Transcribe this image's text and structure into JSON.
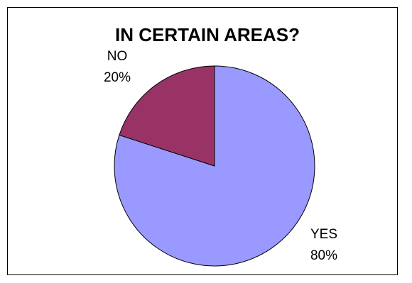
{
  "chart_data": {
    "type": "pie",
    "title": "IN CERTAIN AREAS?",
    "slices": [
      {
        "label": "YES",
        "value": 80,
        "value_label": "80%",
        "color": "#9999FF"
      },
      {
        "label": "NO",
        "value": 20,
        "value_label": "20%",
        "color": "#993366"
      }
    ],
    "start_angle_deg": 0,
    "direction": "clockwise",
    "legend": "none"
  }
}
